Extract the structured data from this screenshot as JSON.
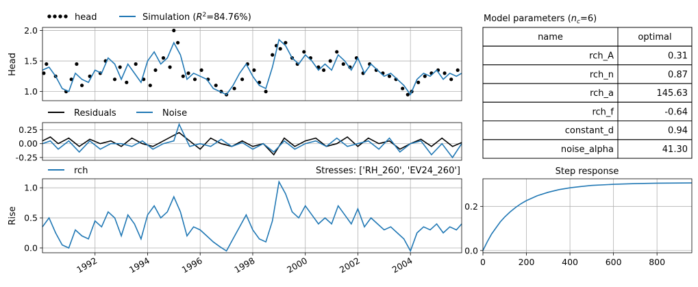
{
  "colors": {
    "simulation": "#1f77b4",
    "head": "#000000",
    "residuals": "#000000",
    "noise": "#1f77b4",
    "grid": "#b0b0b0"
  },
  "chart_data": [
    {
      "type": "line",
      "panel": "head",
      "ylabel": "Head",
      "ylim": [
        0.85,
        2.05
      ],
      "xlim": [
        1990.0,
        2005.95
      ],
      "yticks": [
        1.0,
        1.5,
        2.0
      ],
      "ytick_labels": [
        "1.0",
        "1.5",
        "2.0"
      ],
      "legend": {
        "placement": "above-left",
        "head": "head",
        "simulation_prefix": "Simulation (",
        "r2_symbol": "R",
        "r2_exp": "2",
        "r2_value": "=84.76%)"
      },
      "series": [
        {
          "name": "head",
          "style": "scatter",
          "x": [
            1990.05,
            1990.15,
            1990.5,
            1990.9,
            1991.1,
            1991.3,
            1991.5,
            1991.8,
            1992.2,
            1992.4,
            1992.75,
            1992.95,
            1993.2,
            1993.55,
            1993.85,
            1994.1,
            1994.3,
            1994.6,
            1994.85,
            1995.0,
            1995.15,
            1995.35,
            1995.55,
            1995.8,
            1996.05,
            1996.3,
            1996.6,
            1996.8,
            1997.0,
            1997.3,
            1997.6,
            1997.8,
            1998.05,
            1998.25,
            1998.5,
            1998.75,
            1998.9,
            1999.05,
            1999.25,
            1999.5,
            1999.7,
            1999.95,
            2000.2,
            2000.5,
            2000.7,
            2000.95,
            2001.2,
            2001.45,
            2001.7,
            2001.95,
            2002.2,
            2002.45,
            2002.7,
            2002.95,
            2003.2,
            2003.45,
            2003.7,
            2003.9,
            2004.05,
            2004.3,
            2004.55,
            2004.8,
            2005.05,
            2005.3,
            2005.55,
            2005.8
          ],
          "y": [
            1.3,
            1.45,
            1.25,
            1.0,
            1.2,
            1.45,
            1.1,
            1.25,
            1.3,
            1.5,
            1.2,
            1.4,
            1.15,
            1.45,
            1.2,
            1.1,
            1.35,
            1.55,
            1.4,
            2.0,
            1.8,
            1.25,
            1.3,
            1.2,
            1.35,
            1.2,
            1.1,
            1.0,
            0.95,
            1.05,
            1.2,
            1.45,
            1.35,
            1.15,
            1.0,
            1.6,
            1.75,
            1.7,
            1.8,
            1.55,
            1.45,
            1.65,
            1.55,
            1.4,
            1.35,
            1.5,
            1.65,
            1.45,
            1.4,
            1.55,
            1.3,
            1.45,
            1.35,
            1.3,
            1.25,
            1.2,
            1.05,
            0.95,
            1.0,
            1.15,
            1.25,
            1.3,
            1.35,
            1.3,
            1.2,
            1.35
          ]
        },
        {
          "name": "Simulation",
          "style": "line",
          "x": [
            1990.0,
            1990.25,
            1990.5,
            1990.75,
            1991.0,
            1991.25,
            1991.5,
            1991.75,
            1992.0,
            1992.25,
            1992.5,
            1992.75,
            1993.0,
            1993.25,
            1993.5,
            1993.75,
            1994.0,
            1994.25,
            1994.5,
            1994.75,
            1995.0,
            1995.25,
            1995.5,
            1995.75,
            1996.0,
            1996.25,
            1996.5,
            1996.75,
            1997.0,
            1997.25,
            1997.5,
            1997.75,
            1998.0,
            1998.25,
            1998.5,
            1998.75,
            1999.0,
            1999.25,
            1999.5,
            1999.75,
            2000.0,
            2000.25,
            2000.5,
            2000.75,
            2001.0,
            2001.25,
            2001.5,
            2001.75,
            2002.0,
            2002.25,
            2002.5,
            2002.75,
            2003.0,
            2003.25,
            2003.5,
            2003.75,
            2004.0,
            2004.25,
            2004.5,
            2004.75,
            2005.0,
            2005.25,
            2005.5,
            2005.75,
            2005.95
          ],
          "y": [
            1.35,
            1.4,
            1.25,
            1.05,
            1.0,
            1.3,
            1.2,
            1.15,
            1.35,
            1.3,
            1.55,
            1.45,
            1.2,
            1.45,
            1.3,
            1.15,
            1.5,
            1.65,
            1.45,
            1.55,
            1.8,
            1.6,
            1.2,
            1.3,
            1.25,
            1.2,
            1.05,
            1.0,
            0.95,
            1.1,
            1.3,
            1.45,
            1.25,
            1.1,
            1.05,
            1.4,
            1.85,
            1.75,
            1.55,
            1.45,
            1.6,
            1.5,
            1.35,
            1.45,
            1.35,
            1.6,
            1.5,
            1.35,
            1.55,
            1.3,
            1.45,
            1.35,
            1.25,
            1.3,
            1.2,
            1.1,
            0.95,
            1.2,
            1.3,
            1.25,
            1.35,
            1.2,
            1.3,
            1.25,
            1.3
          ]
        }
      ]
    },
    {
      "type": "line",
      "panel": "residuals",
      "ylim": [
        -0.3,
        0.38
      ],
      "xlim": [
        1990.0,
        2005.95
      ],
      "yticks": [
        -0.25,
        0.0,
        0.25
      ],
      "ytick_labels": [
        "-0.25",
        "0.00",
        "0.25"
      ],
      "legend": {
        "placement": "above-left"
      },
      "series": [
        {
          "name": "Residuals",
          "x": [
            1990.0,
            1990.3,
            1990.6,
            1991.0,
            1991.4,
            1991.8,
            1992.2,
            1992.6,
            1993.0,
            1993.4,
            1993.8,
            1994.2,
            1994.6,
            1995.0,
            1995.2,
            1995.6,
            1996.0,
            1996.4,
            1996.8,
            1997.2,
            1997.6,
            1998.0,
            1998.4,
            1998.8,
            1999.2,
            1999.6,
            2000.0,
            2000.4,
            2000.8,
            2001.2,
            2001.6,
            2002.0,
            2002.4,
            2002.8,
            2003.2,
            2003.6,
            2004.0,
            2004.4,
            2004.8,
            2005.2,
            2005.6,
            2005.95
          ],
          "y": [
            0.05,
            0.12,
            0.0,
            0.1,
            -0.05,
            0.08,
            0.0,
            0.05,
            -0.05,
            0.1,
            0.0,
            -0.05,
            0.05,
            0.15,
            0.2,
            0.05,
            -0.1,
            0.1,
            0.0,
            -0.05,
            0.05,
            -0.05,
            0.0,
            -0.2,
            0.1,
            -0.05,
            0.05,
            0.1,
            -0.05,
            0.0,
            0.12,
            -0.05,
            0.1,
            0.0,
            0.05,
            -0.1,
            0.0,
            0.08,
            -0.05,
            0.1,
            -0.05,
            0.02
          ]
        },
        {
          "name": "Noise",
          "x": [
            1990.0,
            1990.3,
            1990.6,
            1991.0,
            1991.4,
            1991.8,
            1992.2,
            1992.6,
            1993.0,
            1993.4,
            1993.8,
            1994.2,
            1994.6,
            1995.0,
            1995.2,
            1995.6,
            1996.0,
            1996.4,
            1996.8,
            1997.2,
            1997.6,
            1998.0,
            1998.4,
            1998.8,
            1999.2,
            1999.6,
            2000.0,
            2000.4,
            2000.8,
            2001.2,
            2001.6,
            2002.0,
            2002.4,
            2002.8,
            2003.2,
            2003.6,
            2004.0,
            2004.4,
            2004.8,
            2005.2,
            2005.6,
            2005.95
          ],
          "y": [
            0.0,
            0.05,
            -0.1,
            0.05,
            -0.15,
            0.05,
            -0.1,
            0.0,
            0.0,
            -0.05,
            0.05,
            -0.1,
            0.0,
            0.05,
            0.35,
            -0.05,
            0.0,
            -0.05,
            0.08,
            -0.05,
            0.02,
            -0.1,
            0.0,
            -0.15,
            0.05,
            -0.1,
            0.0,
            0.05,
            -0.05,
            0.1,
            -0.05,
            0.0,
            0.05,
            -0.1,
            0.1,
            -0.15,
            0.0,
            0.05,
            -0.2,
            0.0,
            -0.25,
            0.0
          ]
        }
      ]
    },
    {
      "type": "line",
      "panel": "contributions",
      "ylabel": "Rise",
      "ylim": [
        -0.08,
        1.15
      ],
      "xlim": [
        1990.0,
        2005.95
      ],
      "yticks": [
        0.0,
        0.5,
        1.0
      ],
      "ytick_labels": [
        "0.0",
        "0.5",
        "1.0"
      ],
      "xticks": [
        1992,
        1994,
        1996,
        1998,
        2000,
        2002,
        2004
      ],
      "xtick_labels": [
        "1992",
        "1994",
        "1996",
        "1998",
        "2000",
        "2002",
        "2004"
      ],
      "annotation": "Stresses: ['RH_260', 'EV24_260']",
      "legend": {
        "placement": "above-left"
      },
      "series": [
        {
          "name": "rch",
          "x": [
            1990.0,
            1990.25,
            1990.5,
            1990.75,
            1991.0,
            1991.25,
            1991.5,
            1991.75,
            1992.0,
            1992.25,
            1992.5,
            1992.75,
            1993.0,
            1993.25,
            1993.5,
            1993.75,
            1994.0,
            1994.25,
            1994.5,
            1994.75,
            1995.0,
            1995.25,
            1995.5,
            1995.75,
            1996.0,
            1996.25,
            1996.5,
            1996.75,
            1997.0,
            1997.25,
            1997.5,
            1997.75,
            1998.0,
            1998.25,
            1998.5,
            1998.75,
            1999.0,
            1999.25,
            1999.5,
            1999.75,
            2000.0,
            2000.25,
            2000.5,
            2000.75,
            2001.0,
            2001.25,
            2001.5,
            2001.75,
            2002.0,
            2002.25,
            2002.5,
            2002.75,
            2003.0,
            2003.25,
            2003.5,
            2003.75,
            2004.0,
            2004.25,
            2004.5,
            2004.75,
            2005.0,
            2005.25,
            2005.5,
            2005.75,
            2005.95
          ],
          "y": [
            0.35,
            0.5,
            0.25,
            0.05,
            0.0,
            0.3,
            0.2,
            0.15,
            0.45,
            0.35,
            0.6,
            0.5,
            0.2,
            0.55,
            0.4,
            0.15,
            0.55,
            0.7,
            0.5,
            0.6,
            0.85,
            0.6,
            0.2,
            0.35,
            0.3,
            0.2,
            0.1,
            0.02,
            -0.05,
            0.15,
            0.35,
            0.55,
            0.3,
            0.15,
            0.1,
            0.45,
            1.1,
            0.9,
            0.6,
            0.5,
            0.7,
            0.55,
            0.4,
            0.5,
            0.4,
            0.7,
            0.55,
            0.4,
            0.65,
            0.35,
            0.5,
            0.4,
            0.3,
            0.35,
            0.25,
            0.15,
            -0.05,
            0.25,
            0.35,
            0.3,
            0.4,
            0.25,
            0.35,
            0.3,
            0.4
          ]
        }
      ]
    },
    {
      "type": "line",
      "panel": "step-response",
      "title": "Step response",
      "xlim": [
        0,
        960
      ],
      "ylim": [
        -0.01,
        0.325
      ],
      "xticks": [
        0,
        200,
        400,
        600,
        800
      ],
      "xtick_labels": [
        "0",
        "200",
        "400",
        "600",
        "800"
      ],
      "yticks": [
        0.0,
        0.2
      ],
      "ytick_labels": [
        "0.0",
        "0.2"
      ],
      "series": [
        {
          "x": [
            0,
            20,
            40,
            60,
            80,
            100,
            125,
            150,
            175,
            200,
            250,
            300,
            350,
            400,
            450,
            500,
            600,
            700,
            800,
            960
          ],
          "y": [
            0.0,
            0.04,
            0.075,
            0.103,
            0.13,
            0.152,
            0.175,
            0.195,
            0.212,
            0.226,
            0.248,
            0.264,
            0.276,
            0.284,
            0.29,
            0.295,
            0.3,
            0.303,
            0.305,
            0.306
          ]
        }
      ]
    },
    {
      "type": "table",
      "panel": "parameters",
      "title_prefix": "Model parameters (",
      "title_sym": "n",
      "title_sub": "c",
      "title_suffix": "=6)",
      "columns": [
        "name",
        "optimal"
      ],
      "rows": [
        [
          "rch_A",
          "0.31"
        ],
        [
          "rch_n",
          "0.87"
        ],
        [
          "rch_a",
          "145.63"
        ],
        [
          "rch_f",
          "-0.64"
        ],
        [
          "constant_d",
          "0.94"
        ],
        [
          "noise_alpha",
          "41.30"
        ]
      ]
    }
  ]
}
